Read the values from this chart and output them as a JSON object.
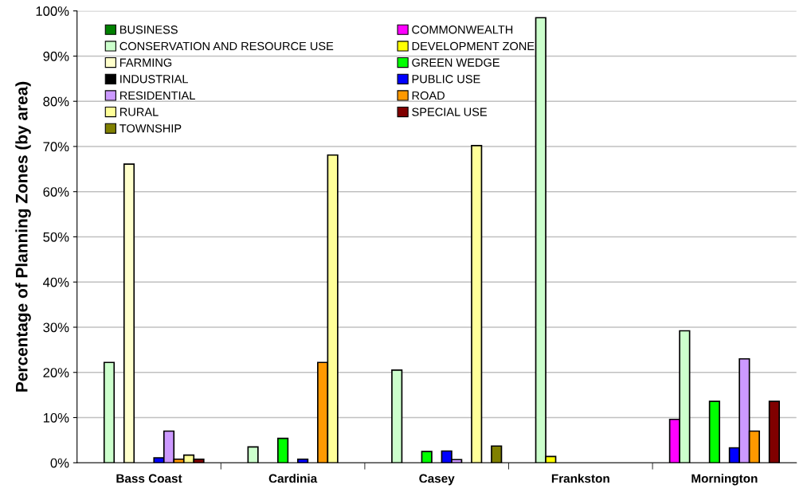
{
  "chart_data": {
    "type": "bar",
    "ylabel": "Percentage of Planning Zones (by area)",
    "categories": [
      "Bass Coast",
      "Cardinia",
      "Casey",
      "Frankston",
      "Mornington"
    ],
    "series": [
      {
        "name": "BUSINESS",
        "color": "#008000",
        "values": [
          null,
          null,
          null,
          null,
          null
        ]
      },
      {
        "name": "COMMONWEALTH",
        "color": "#ff00ff",
        "values": [
          null,
          null,
          null,
          null,
          9.6
        ]
      },
      {
        "name": "CONSERVATION AND RESOURCE USE",
        "color": "#ccffcc",
        "values": [
          22.2,
          3.5,
          20.5,
          98.5,
          29.2
        ]
      },
      {
        "name": "DEVELOPMENT ZONE",
        "color": "#ffff00",
        "values": [
          null,
          null,
          null,
          1.4,
          null
        ]
      },
      {
        "name": "FARMING",
        "color": "#ffffcc",
        "values": [
          66.1,
          null,
          null,
          null,
          null
        ]
      },
      {
        "name": "GREEN WEDGE",
        "color": "#00ff00",
        "values": [
          null,
          5.4,
          2.5,
          null,
          13.6
        ]
      },
      {
        "name": "INDUSTRIAL",
        "color": "#000000",
        "values": [
          null,
          null,
          null,
          null,
          null
        ]
      },
      {
        "name": "PUBLIC USE",
        "color": "#0000ff",
        "values": [
          1.1,
          0.8,
          2.6,
          null,
          3.3
        ]
      },
      {
        "name": "RESIDENTIAL",
        "color": "#cc99ff",
        "values": [
          7.0,
          null,
          0.7,
          null,
          23.0
        ]
      },
      {
        "name": "ROAD",
        "color": "#ff9900",
        "values": [
          0.8,
          22.2,
          null,
          null,
          7.0
        ]
      },
      {
        "name": "RURAL",
        "color": "#ffff99",
        "values": [
          1.7,
          68.1,
          70.2,
          null,
          null
        ]
      },
      {
        "name": "SPECIAL USE",
        "color": "#800000",
        "values": [
          0.8,
          null,
          null,
          null,
          13.6
        ]
      },
      {
        "name": "TOWNSHIP",
        "color": "#808000",
        "values": [
          null,
          null,
          3.7,
          null,
          null
        ]
      }
    ],
    "ylim": [
      0,
      100
    ],
    "yticks": [
      {
        "value": 0,
        "label": "0%"
      },
      {
        "value": 10,
        "label": "10%"
      },
      {
        "value": 20,
        "label": "20%"
      },
      {
        "value": 30,
        "label": "30%"
      },
      {
        "value": 40,
        "label": "40%"
      },
      {
        "value": 50,
        "label": "50%"
      },
      {
        "value": 60,
        "label": "60%"
      },
      {
        "value": 70,
        "label": "70%"
      },
      {
        "value": 80,
        "label": "80%"
      },
      {
        "value": 90,
        "label": "90%"
      },
      {
        "value": 100,
        "label": "100%"
      }
    ],
    "grid": "y",
    "legend": "top left"
  }
}
